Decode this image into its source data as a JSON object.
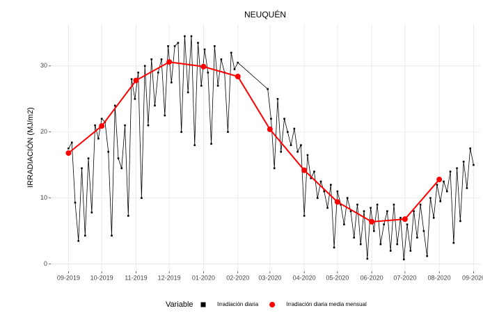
{
  "chart_data": {
    "type": "line",
    "title": "NEUQUÉN",
    "y_label": "IRRADIACIÓN (MJ/m2)",
    "legend_title": "Variable",
    "xlim": [
      -16,
      372
    ],
    "ylim": [
      -1.1,
      36.3
    ],
    "grid": true,
    "xticks": [
      {
        "value": 0,
        "label": "09-2019"
      },
      {
        "value": 30,
        "label": "10-2019"
      },
      {
        "value": 61,
        "label": "11-2019"
      },
      {
        "value": 91,
        "label": "12-2019"
      },
      {
        "value": 122,
        "label": "01-2020"
      },
      {
        "value": 153,
        "label": "02-2020"
      },
      {
        "value": 182,
        "label": "03-2020"
      },
      {
        "value": 213,
        "label": "04-2020"
      },
      {
        "value": 243,
        "label": "05-2020"
      },
      {
        "value": 274,
        "label": "06-2020"
      },
      {
        "value": 304,
        "label": "07-2020"
      },
      {
        "value": 335,
        "label": "08-2020"
      },
      {
        "value": 366,
        "label": "09-2020"
      }
    ],
    "yticks": [
      0,
      10,
      20,
      30
    ],
    "series": [
      {
        "name": "Irradiación diaria",
        "color": "#000000",
        "marker": "square",
        "x": [
          0,
          3,
          6,
          9,
          12,
          15,
          18,
          21,
          24,
          27,
          30,
          33,
          36,
          39,
          42,
          45,
          48,
          51,
          54,
          57,
          60,
          63,
          66,
          69,
          72,
          75,
          78,
          81,
          84,
          87,
          90,
          93,
          96,
          99,
          102,
          105,
          108,
          111,
          114,
          117,
          120,
          123,
          126,
          129,
          132,
          135,
          138,
          141,
          144,
          147,
          150,
          153,
          180,
          183,
          186,
          189,
          192,
          195,
          198,
          201,
          204,
          207,
          210,
          213,
          216,
          219,
          222,
          225,
          228,
          231,
          234,
          237,
          240,
          243,
          246,
          249,
          252,
          255,
          258,
          261,
          264,
          267,
          270,
          273,
          276,
          279,
          282,
          285,
          288,
          291,
          294,
          297,
          300,
          303,
          306,
          309,
          312,
          315,
          318,
          321,
          324,
          327,
          330,
          333,
          336,
          339,
          342,
          345,
          348,
          351,
          354,
          357,
          360,
          363,
          366
        ],
        "values": [
          17.5,
          18.4,
          9.3,
          3.5,
          14.5,
          4.3,
          16,
          7.8,
          21,
          19,
          22,
          21.5,
          17,
          4.3,
          24,
          16,
          14.5,
          21,
          7.3,
          28,
          25,
          29,
          10,
          30,
          21,
          31,
          24,
          29,
          31,
          22.5,
          33,
          27.5,
          33,
          33.5,
          20,
          34.5,
          26,
          34.5,
          18,
          33.5,
          27,
          32.5,
          29,
          18.2,
          33,
          27,
          31,
          29,
          20,
          32,
          29.5,
          30.5,
          26.5,
          22,
          14.5,
          25,
          17,
          22,
          20,
          18,
          20.5,
          17,
          18,
          7.3,
          16.5,
          13,
          14,
          10,
          12.5,
          11,
          8.5,
          12,
          2.5,
          11,
          9,
          6,
          10,
          8,
          4,
          9,
          3,
          8,
          0.8,
          8.5,
          5,
          9,
          3,
          6,
          8,
          2,
          9,
          3,
          7,
          0.7,
          6,
          2,
          8,
          4,
          9,
          5,
          1.2,
          10,
          7,
          12,
          9.5,
          12.5,
          11,
          14,
          3.2,
          14.5,
          6.5,
          15.5,
          11.5,
          17.5,
          15
        ]
      },
      {
        "name": "Irradiación diaria media mensual",
        "color": "#ff0000",
        "marker": "circle",
        "x": [
          0,
          30,
          61,
          91,
          122,
          153,
          182,
          213,
          243,
          274,
          304,
          335
        ],
        "values": [
          16.8,
          20.9,
          27.8,
          30.6,
          29.9,
          28.4,
          20.4,
          14.2,
          9.4,
          6.4,
          6.8,
          12.8
        ]
      }
    ]
  }
}
